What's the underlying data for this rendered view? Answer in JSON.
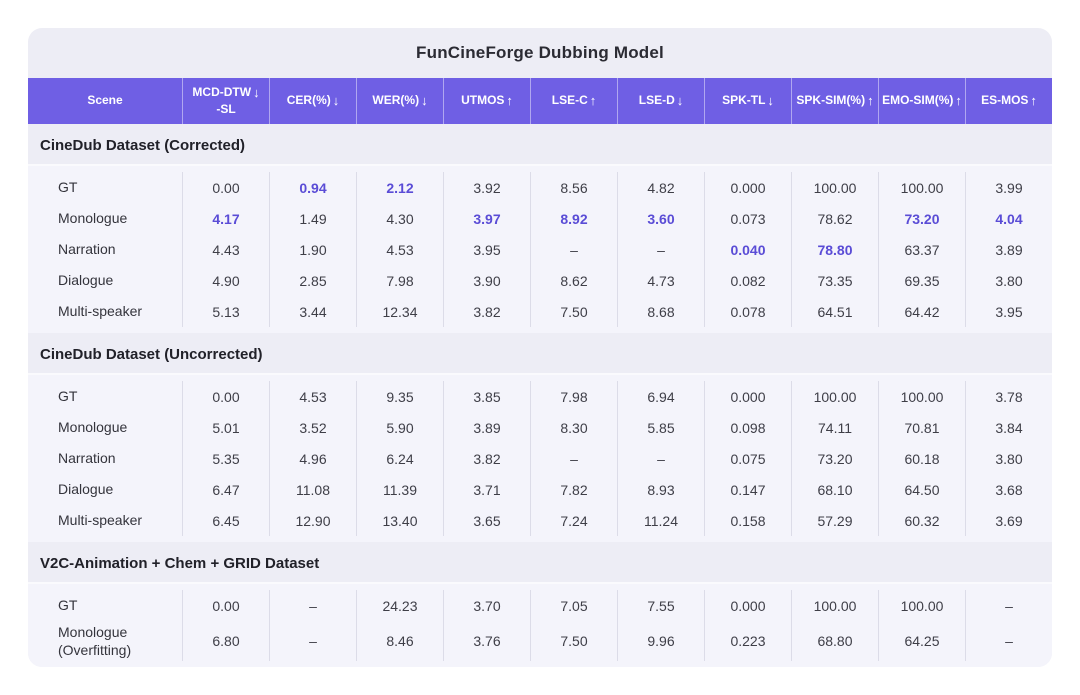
{
  "title": "FunCineForge Dubbing Model",
  "colors": {
    "page_background": "#ffffff",
    "card_background": "#ededf5",
    "panel_background": "#f4f4fb",
    "header_background": "#6f5fe4",
    "header_text": "#ffffff",
    "body_text": "#3e3e47",
    "highlight_text": "#5a4cd6",
    "column_divider": "#dcdce8"
  },
  "chart_data": {
    "type": "table",
    "title": "FunCineForge Dubbing Model",
    "columns": [
      {
        "label": "Scene",
        "arrow": "",
        "sub": ""
      },
      {
        "label": "MCD-DTW",
        "arrow": "↓",
        "sub": "-SL"
      },
      {
        "label": "CER(%)",
        "arrow": "↓",
        "sub": ""
      },
      {
        "label": "WER(%)",
        "arrow": "↓",
        "sub": ""
      },
      {
        "label": "UTMOS",
        "arrow": "↑",
        "sub": ""
      },
      {
        "label": "LSE-C",
        "arrow": "↑",
        "sub": ""
      },
      {
        "label": "LSE-D",
        "arrow": "↓",
        "sub": ""
      },
      {
        "label": "SPK-TL",
        "arrow": "↓",
        "sub": ""
      },
      {
        "label": "SPK-SIM(%)",
        "arrow": "↑",
        "sub": ""
      },
      {
        "label": "EMO-SIM(%)",
        "arrow": "↑",
        "sub": ""
      },
      {
        "label": "ES-MOS",
        "arrow": "↑",
        "sub": ""
      }
    ],
    "sections": [
      {
        "title": "CineDub Dataset (Corrected)",
        "rows": [
          {
            "scene": "GT",
            "values": [
              "0.00",
              "0.94",
              "2.12",
              "3.92",
              "8.56",
              "4.82",
              "0.000",
              "100.00",
              "100.00",
              "3.99"
            ],
            "highlight": [
              1,
              2
            ]
          },
          {
            "scene": "Monologue",
            "values": [
              "4.17",
              "1.49",
              "4.30",
              "3.97",
              "8.92",
              "3.60",
              "0.073",
              "78.62",
              "73.20",
              "4.04"
            ],
            "highlight": [
              0,
              3,
              4,
              5,
              8,
              9
            ]
          },
          {
            "scene": "Narration",
            "values": [
              "4.43",
              "1.90",
              "4.53",
              "3.95",
              "–",
              "–",
              "0.040",
              "78.80",
              "63.37",
              "3.89"
            ],
            "highlight": [
              6,
              7
            ]
          },
          {
            "scene": "Dialogue",
            "values": [
              "4.90",
              "2.85",
              "7.98",
              "3.90",
              "8.62",
              "4.73",
              "0.082",
              "73.35",
              "69.35",
              "3.80"
            ],
            "highlight": []
          },
          {
            "scene": "Multi-speaker",
            "values": [
              "5.13",
              "3.44",
              "12.34",
              "3.82",
              "7.50",
              "8.68",
              "0.078",
              "64.51",
              "64.42",
              "3.95"
            ],
            "highlight": []
          }
        ]
      },
      {
        "title": "CineDub Dataset (Uncorrected)",
        "rows": [
          {
            "scene": "GT",
            "values": [
              "0.00",
              "4.53",
              "9.35",
              "3.85",
              "7.98",
              "6.94",
              "0.000",
              "100.00",
              "100.00",
              "3.78"
            ],
            "highlight": []
          },
          {
            "scene": "Monologue",
            "values": [
              "5.01",
              "3.52",
              "5.90",
              "3.89",
              "8.30",
              "5.85",
              "0.098",
              "74.11",
              "70.81",
              "3.84"
            ],
            "highlight": []
          },
          {
            "scene": "Narration",
            "values": [
              "5.35",
              "4.96",
              "6.24",
              "3.82",
              "–",
              "–",
              "0.075",
              "73.20",
              "60.18",
              "3.80"
            ],
            "highlight": []
          },
          {
            "scene": "Dialogue",
            "values": [
              "6.47",
              "11.08",
              "11.39",
              "3.71",
              "7.82",
              "8.93",
              "0.147",
              "68.10",
              "64.50",
              "3.68"
            ],
            "highlight": []
          },
          {
            "scene": "Multi-speaker",
            "values": [
              "6.45",
              "12.90",
              "13.40",
              "3.65",
              "7.24",
              "11.24",
              "0.158",
              "57.29",
              "60.32",
              "3.69"
            ],
            "highlight": []
          }
        ]
      },
      {
        "title": "V2C-Animation + Chem + GRID Dataset",
        "rows": [
          {
            "scene": "GT",
            "values": [
              "0.00",
              "–",
              "24.23",
              "3.70",
              "7.05",
              "7.55",
              "0.000",
              "100.00",
              "100.00",
              "–"
            ],
            "highlight": []
          },
          {
            "scene": "Monologue (Overfitting)",
            "values": [
              "6.80",
              "–",
              "8.46",
              "3.76",
              "7.50",
              "9.96",
              "0.223",
              "68.80",
              "64.25",
              "–"
            ],
            "highlight": []
          }
        ]
      }
    ]
  }
}
